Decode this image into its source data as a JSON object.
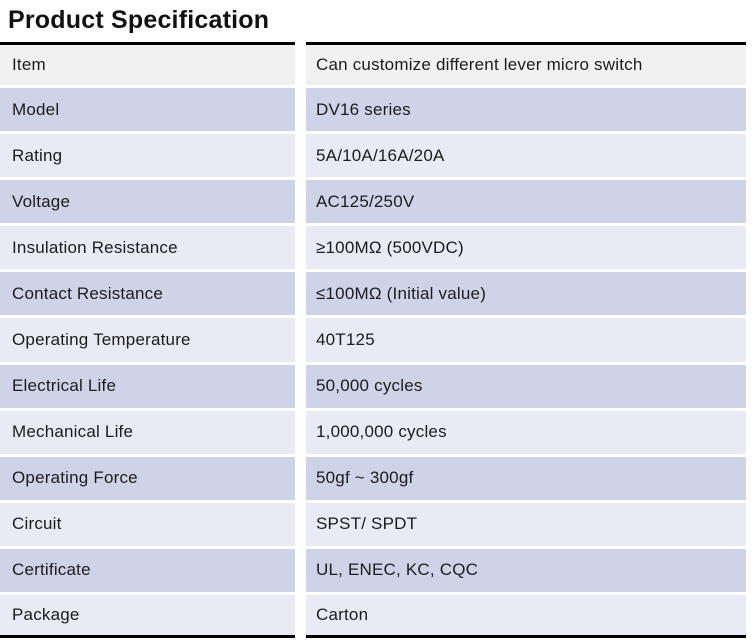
{
  "page": {
    "title": "Product Specification"
  },
  "table": {
    "columns": [
      "label",
      "value"
    ],
    "rows": [
      {
        "label": "Item",
        "value": "Can customize different lever micro switch"
      },
      {
        "label": "Model",
        "value": "DV16 series"
      },
      {
        "label": "Rating",
        "value": "5A/10A/16A/20A"
      },
      {
        "label": "Voltage",
        "value": "AC125/250V"
      },
      {
        "label": "Insulation Resistance",
        "value": "≥100MΩ (500VDC)"
      },
      {
        "label": "Contact Resistance",
        "value": "≤100MΩ (Initial value)"
      },
      {
        "label": "Operating Temperature",
        "value": "40T125"
      },
      {
        "label": "Electrical Life",
        "value": "50,000 cycles"
      },
      {
        "label": "Mechanical Life",
        "value": "1,000,000 cycles"
      },
      {
        "label": "Operating Force",
        "value": "50gf ~ 300gf"
      },
      {
        "label": "Circuit",
        "value": "SPST/ SPDT"
      },
      {
        "label": "Certificate",
        "value": "UL, ENEC, KC, CQC"
      },
      {
        "label": "Package",
        "value": "Carton"
      }
    ]
  },
  "colors": {
    "first_row_bg": "#f1f1f2",
    "shaded_row_bg": "#cfd3e7",
    "light_row_bg": "#e9eaf4",
    "border": "#000000",
    "text": "#1c1c1c"
  }
}
